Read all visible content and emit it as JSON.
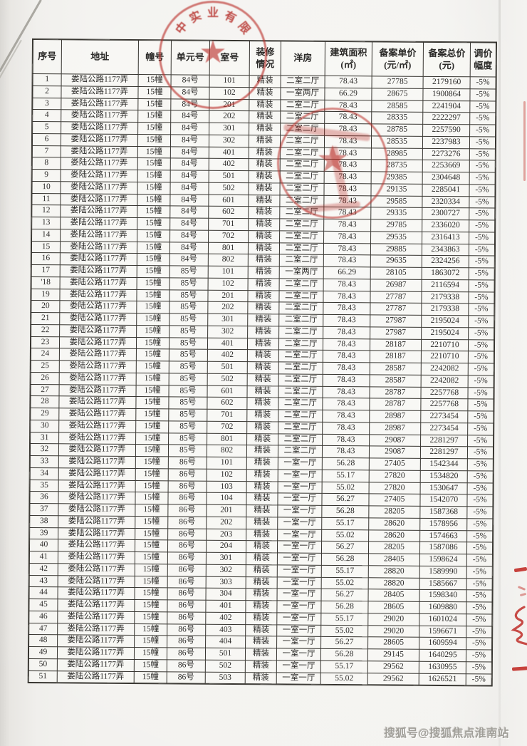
{
  "document": {
    "watermark": "搜狐号@搜狐焦点淮南站"
  },
  "stamps": {
    "top_seal_text": "中实业有限",
    "seal_color": "#ba2c26"
  },
  "table": {
    "headers": [
      "序号",
      "地址",
      "幢号",
      "单元号",
      "室号",
      "装修\n情况",
      "洋房",
      "建筑面积\n(㎡)",
      "备案单价\n(元/㎡)",
      "备案总价\n(元)",
      "调价\n幅度"
    ],
    "rows": [
      [
        "1",
        "娄陆公路1177弄",
        "15幢",
        "84号",
        "101",
        "精装",
        "二室二厅",
        "78.43",
        "27785",
        "2179160",
        "-5%"
      ],
      [
        "2",
        "娄陆公路1177弄",
        "15幢",
        "84号",
        "102",
        "精装",
        "一室两厅",
        "66.29",
        "28675",
        "1900864",
        "-5%"
      ],
      [
        "3",
        "娄陆公路1177弄",
        "15幢",
        "84号",
        "201",
        "精装",
        "二室二厅",
        "78.43",
        "28585",
        "2241904",
        "-5%"
      ],
      [
        "4",
        "娄陆公路1177弄",
        "15幢",
        "84号",
        "202",
        "精装",
        "二室二厅",
        "78.43",
        "28335",
        "2222297",
        "-5%"
      ],
      [
        "5",
        "娄陆公路1177弄",
        "15幢",
        "84号",
        "301",
        "精装",
        "二室二厅",
        "78.43",
        "28785",
        "2257590",
        "-5%"
      ],
      [
        "6",
        "娄陆公路1177弄",
        "15幢",
        "84号",
        "302",
        "精装",
        "二室二厅",
        "78.43",
        "28535",
        "2237983",
        "-5%"
      ],
      [
        "7",
        "娄陆公路1177弄",
        "15幢",
        "84号",
        "401",
        "精装",
        "二室二厅",
        "78.43",
        "28985",
        "2273276",
        "-5%"
      ],
      [
        "8",
        "娄陆公路1177弄",
        "15幢",
        "84号",
        "402",
        "精装",
        "二室二厅",
        "78.43",
        "28735",
        "2253669",
        "-5%"
      ],
      [
        "9",
        "娄陆公路1177弄",
        "15幢",
        "84号",
        "501",
        "精装",
        "二室二厅",
        "78.43",
        "29385",
        "2304648",
        "-5%"
      ],
      [
        "10",
        "娄陆公路1177弄",
        "15幢",
        "84号",
        "502",
        "精装",
        "二室二厅",
        "78.43",
        "29135",
        "2285041",
        "-5%"
      ],
      [
        "11",
        "娄陆公路1177弄",
        "15幢",
        "84号",
        "601",
        "精装",
        "二室二厅",
        "78.43",
        "29585",
        "2320334",
        "-5%"
      ],
      [
        "12",
        "娄陆公路1177弄",
        "15幢",
        "84号",
        "602",
        "精装",
        "二室二厅",
        "78.43",
        "29335",
        "2300727",
        "-5%"
      ],
      [
        "13",
        "娄陆公路1177弄",
        "15幢",
        "84号",
        "701",
        "精装",
        "二室二厅",
        "78.43",
        "29785",
        "2336020",
        "-5%"
      ],
      [
        "14",
        "娄陆公路1177弄",
        "15幢",
        "84号",
        "702",
        "精装",
        "二室二厅",
        "78.43",
        "29535",
        "2316413",
        "-5%"
      ],
      [
        "15",
        "娄陆公路1177弄",
        "15幢",
        "84号",
        "801",
        "精装",
        "二室二厅",
        "78.43",
        "29885",
        "2343863",
        "-5%"
      ],
      [
        "16",
        "娄陆公路1177弄",
        "15幢",
        "84号",
        "802",
        "精装",
        "二室二厅",
        "78.43",
        "29635",
        "2324256",
        "-5%"
      ],
      [
        "17",
        "娄陆公路1177弄",
        "15幢",
        "85号",
        "101",
        "精装",
        "一室两厅",
        "66.29",
        "28105",
        "1863072",
        "-5%"
      ],
      [
        "'18",
        "娄陆公路1177弄",
        "15幢",
        "85号",
        "102",
        "精装",
        "二室二厅",
        "78.43",
        "26987",
        "2116594",
        "-5%"
      ],
      [
        "19",
        "娄陆公路1177弄",
        "15幢",
        "85号",
        "201",
        "精装",
        "二室二厅",
        "78.43",
        "27787",
        "2179338",
        "-5%"
      ],
      [
        "20",
        "娄陆公路1177弄",
        "15幢",
        "85号",
        "202",
        "精装",
        "二室二厅",
        "78.43",
        "27787",
        "2179338",
        "-5%"
      ],
      [
        "21",
        "娄陆公路1177弄",
        "15幢",
        "85号",
        "301",
        "精装",
        "二室二厅",
        "78.43",
        "27987",
        "2195024",
        "-5%"
      ],
      [
        "22",
        "娄陆公路1177弄",
        "15幢",
        "85号",
        "302",
        "精装",
        "二室二厅",
        "78.43",
        "27987",
        "2195024",
        "-5%"
      ],
      [
        "23",
        "娄陆公路1177弄",
        "15幢",
        "85号",
        "401",
        "精装",
        "二室二厅",
        "78.43",
        "28187",
        "2210710",
        "-5%"
      ],
      [
        "24",
        "娄陆公路1177弄",
        "15幢",
        "85号",
        "402",
        "精装",
        "二室二厅",
        "78.43",
        "28187",
        "2210710",
        "-5%"
      ],
      [
        "25",
        "娄陆公路1177弄",
        "15幢",
        "85号",
        "501",
        "精装",
        "二室二厅",
        "78.43",
        "28587",
        "2242082",
        "-5%"
      ],
      [
        "26",
        "娄陆公路1177弄",
        "15幢",
        "85号",
        "502",
        "精装",
        "二室二厅",
        "78.43",
        "28587",
        "2242082",
        "-5%"
      ],
      [
        "27",
        "娄陆公路1177弄",
        "15幢",
        "85号",
        "601",
        "精装",
        "二室二厅",
        "78.43",
        "28787",
        "2257768",
        "-5%"
      ],
      [
        "28",
        "娄陆公路1177弄",
        "15幢",
        "85号",
        "602",
        "精装",
        "二室二厅",
        "78.43",
        "28787",
        "2257768",
        "-5%"
      ],
      [
        "29",
        "娄陆公路1177弄",
        "15幢",
        "85号",
        "701",
        "精装",
        "二室二厅",
        "78.43",
        "28987",
        "2273454",
        "-5%"
      ],
      [
        "30",
        "娄陆公路1177弄",
        "15幢",
        "85号",
        "702",
        "精装",
        "二室二厅",
        "78.43",
        "28987",
        "2273454",
        "-5%"
      ],
      [
        "31",
        "娄陆公路1177弄",
        "15幢",
        "85号",
        "801",
        "精装",
        "二室二厅",
        "78.43",
        "29087",
        "2281297",
        "-5%"
      ],
      [
        "32",
        "娄陆公路1177弄",
        "15幢",
        "85号",
        "802",
        "精装",
        "二室二厅",
        "78.43",
        "29087",
        "2281297",
        "-5%"
      ],
      [
        "33",
        "娄陆公路1177弄",
        "15幢",
        "86号",
        "101",
        "精装",
        "一室一厅",
        "56.28",
        "27405",
        "1542344",
        "-5%"
      ],
      [
        "34",
        "娄陆公路1177弄",
        "15幢",
        "86号",
        "102",
        "精装",
        "一室一厅",
        "55.17",
        "27820",
        "1534820",
        "-5%"
      ],
      [
        "35",
        "娄陆公路1177弄",
        "15幢",
        "86号",
        "103",
        "精装",
        "一室一厅",
        "55.02",
        "27820",
        "1530647",
        "-5%"
      ],
      [
        "36",
        "娄陆公路1177弄",
        "15幢",
        "86号",
        "104",
        "精装",
        "一室一厅",
        "56.27",
        "27405",
        "1542070",
        "-5%"
      ],
      [
        "37",
        "娄陆公路1177弄",
        "15幢",
        "86号",
        "201",
        "精装",
        "一室一厅",
        "56.28",
        "28205",
        "1587368",
        "-5%"
      ],
      [
        "38",
        "娄陆公路1177弄",
        "15幢",
        "86号",
        "202",
        "精装",
        "一室一厅",
        "55.17",
        "28620",
        "1578956",
        "-5%"
      ],
      [
        "39",
        "娄陆公路1177弄",
        "15幢",
        "86号",
        "203",
        "精装",
        "一室一厅",
        "55.02",
        "28620",
        "1574663",
        "-5%"
      ],
      [
        "40",
        "娄陆公路1177弄",
        "15幢",
        "86号",
        "204",
        "精装",
        "一室一厅",
        "56.27",
        "28205",
        "1587086",
        "-5%"
      ],
      [
        "41",
        "娄陆公路1177弄",
        "15幢",
        "86号",
        "301",
        "精装",
        "一室一厅",
        "56.28",
        "28405",
        "1598624",
        "-5%"
      ],
      [
        "42",
        "娄陆公路1177弄",
        "15幢",
        "86号",
        "302",
        "精装",
        "一室一厅",
        "55.17",
        "28820",
        "1589990",
        "-5%"
      ],
      [
        "43",
        "娄陆公路1177弄",
        "15幢",
        "86号",
        "303",
        "精装",
        "一室一厅",
        "55.02",
        "28820",
        "1585667",
        "-5%"
      ],
      [
        "44",
        "娄陆公路1177弄",
        "15幢",
        "86号",
        "304",
        "精装",
        "一室一厅",
        "56.27",
        "28405",
        "1598340",
        "-5%"
      ],
      [
        "45",
        "娄陆公路1177弄",
        "15幢",
        "86号",
        "401",
        "精装",
        "一室一厅",
        "56.28",
        "28605",
        "1609880",
        "-5%"
      ],
      [
        "46",
        "娄陆公路1177弄",
        "15幢",
        "86号",
        "402",
        "精装",
        "一室一厅",
        "55.17",
        "29020",
        "1601024",
        "-5%"
      ],
      [
        "47",
        "娄陆公路1177弄",
        "15幢",
        "86号",
        "403",
        "精装",
        "一室一厅",
        "55.02",
        "29020",
        "1596671",
        "-5%"
      ],
      [
        "48",
        "娄陆公路1177弄",
        "15幢",
        "86号",
        "404",
        "精装",
        "一室一厅",
        "56.27",
        "28605",
        "1609594",
        "-5%"
      ],
      [
        "49",
        "娄陆公路1177弄",
        "15幢",
        "86号",
        "501",
        "精装",
        "一室一厅",
        "56.28",
        "29145",
        "1640295",
        "-5%"
      ],
      [
        "50",
        "娄陆公路1177弄",
        "15幢",
        "86号",
        "502",
        "精装",
        "一室一厅",
        "55.17",
        "29562",
        "1630955",
        "-5%"
      ],
      [
        "51",
        "娄陆公路1177弄",
        "15幢",
        "86号",
        "503",
        "精装",
        "一室一厅",
        "55.02",
        "29562",
        "1626521",
        "-5%"
      ]
    ]
  }
}
